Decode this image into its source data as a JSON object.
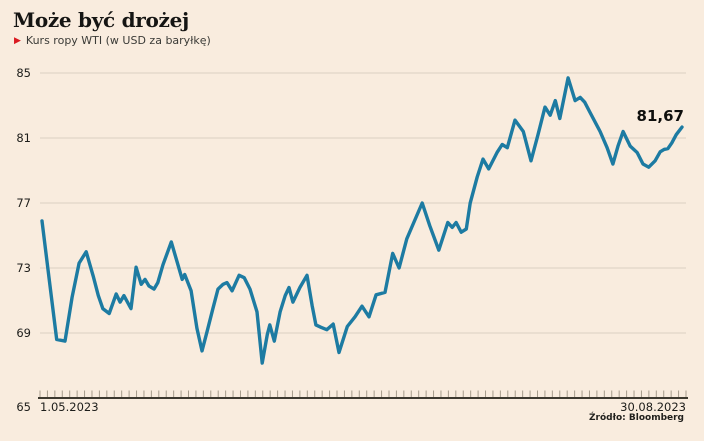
{
  "chart_data": {
    "type": "line",
    "title": "Może być drożej",
    "legend": "Kurs ropy WTI (w USD za baryłkę)",
    "source": "Źródło: Bloomberg",
    "unit": "USD za baryłkę",
    "line_color": "#1d7ba2",
    "accent_color": "#da1a20",
    "background_color": "#f9ecde",
    "grid": true,
    "legend_position": "top-left",
    "y_axis": {
      "ticks": [
        65,
        69,
        73,
        77,
        81,
        85
      ],
      "range": [
        65,
        85.6
      ]
    },
    "x_axis": {
      "start_label": "1.05.2023",
      "end_label": "30.08.2023",
      "minor_ticks": 88
    },
    "last_value": 81.67,
    "last_value_label": "81,67",
    "series": [
      {
        "name": "Kurs ropy WTI",
        "points": [
          [
            0,
            75.9
          ],
          [
            0.011,
            72.4
          ],
          [
            0.023,
            68.6
          ],
          [
            0.036,
            68.5
          ],
          [
            0.047,
            71.2
          ],
          [
            0.058,
            73.3
          ],
          [
            0.069,
            74
          ],
          [
            0.08,
            72.5
          ],
          [
            0.088,
            71.3
          ],
          [
            0.095,
            70.5
          ],
          [
            0.105,
            70.2
          ],
          [
            0.116,
            71.4
          ],
          [
            0.122,
            70.9
          ],
          [
            0.128,
            71.3
          ],
          [
            0.139,
            70.5
          ],
          [
            0.147,
            73.05
          ],
          [
            0.155,
            72
          ],
          [
            0.161,
            72.3
          ],
          [
            0.167,
            71.9
          ],
          [
            0.175,
            71.7
          ],
          [
            0.181,
            72.1
          ],
          [
            0.189,
            73.2
          ],
          [
            0.202,
            74.6
          ],
          [
            0.211,
            73.4
          ],
          [
            0.219,
            72.3
          ],
          [
            0.223,
            72.6
          ],
          [
            0.233,
            71.6
          ],
          [
            0.242,
            69.3
          ],
          [
            0.25,
            67.9
          ],
          [
            0.258,
            69.1
          ],
          [
            0.267,
            70.5
          ],
          [
            0.275,
            71.7
          ],
          [
            0.283,
            72
          ],
          [
            0.289,
            72.1
          ],
          [
            0.297,
            71.6
          ],
          [
            0.308,
            72.55
          ],
          [
            0.316,
            72.4
          ],
          [
            0.325,
            71.7
          ],
          [
            0.336,
            70.3
          ],
          [
            0.344,
            67.15
          ],
          [
            0.352,
            68.9
          ],
          [
            0.356,
            69.5
          ],
          [
            0.363,
            68.5
          ],
          [
            0.372,
            70.3
          ],
          [
            0.38,
            71.3
          ],
          [
            0.386,
            71.8
          ],
          [
            0.392,
            70.9
          ],
          [
            0.403,
            71.8
          ],
          [
            0.414,
            72.55
          ],
          [
            0.422,
            70.7
          ],
          [
            0.428,
            69.5
          ],
          [
            0.436,
            69.35
          ],
          [
            0.445,
            69.2
          ],
          [
            0.455,
            69.55
          ],
          [
            0.464,
            67.8
          ],
          [
            0.477,
            69.4
          ],
          [
            0.489,
            70
          ],
          [
            0.5,
            70.65
          ],
          [
            0.511,
            70
          ],
          [
            0.522,
            71.35
          ],
          [
            0.536,
            71.5
          ],
          [
            0.548,
            73.9
          ],
          [
            0.558,
            73
          ],
          [
            0.57,
            74.8
          ],
          [
            0.581,
            75.8
          ],
          [
            0.594,
            77
          ],
          [
            0.606,
            75.6
          ],
          [
            0.62,
            74.1
          ],
          [
            0.634,
            75.8
          ],
          [
            0.641,
            75.5
          ],
          [
            0.647,
            75.8
          ],
          [
            0.655,
            75.2
          ],
          [
            0.663,
            75.4
          ],
          [
            0.669,
            77
          ],
          [
            0.68,
            78.6
          ],
          [
            0.689,
            79.7
          ],
          [
            0.698,
            79.1
          ],
          [
            0.711,
            80.1
          ],
          [
            0.719,
            80.6
          ],
          [
            0.727,
            80.4
          ],
          [
            0.739,
            82.1
          ],
          [
            0.752,
            81.4
          ],
          [
            0.764,
            79.6
          ],
          [
            0.775,
            81.2
          ],
          [
            0.786,
            82.9
          ],
          [
            0.794,
            82.4
          ],
          [
            0.802,
            83.3
          ],
          [
            0.809,
            82.2
          ],
          [
            0.822,
            84.7
          ],
          [
            0.833,
            83.3
          ],
          [
            0.841,
            83.5
          ],
          [
            0.848,
            83.2
          ],
          [
            0.856,
            82.6
          ],
          [
            0.872,
            81.4
          ],
          [
            0.883,
            80.4
          ],
          [
            0.892,
            79.4
          ],
          [
            0.9,
            80.5
          ],
          [
            0.908,
            81.4
          ],
          [
            0.919,
            80.5
          ],
          [
            0.93,
            80.1
          ],
          [
            0.939,
            79.4
          ],
          [
            0.948,
            79.2
          ],
          [
            0.958,
            79.6
          ],
          [
            0.966,
            80.15
          ],
          [
            0.972,
            80.3
          ],
          [
            0.978,
            80.35
          ],
          [
            0.984,
            80.7
          ],
          [
            0.991,
            81.2
          ],
          [
            1,
            81.67
          ]
        ]
      }
    ]
  }
}
